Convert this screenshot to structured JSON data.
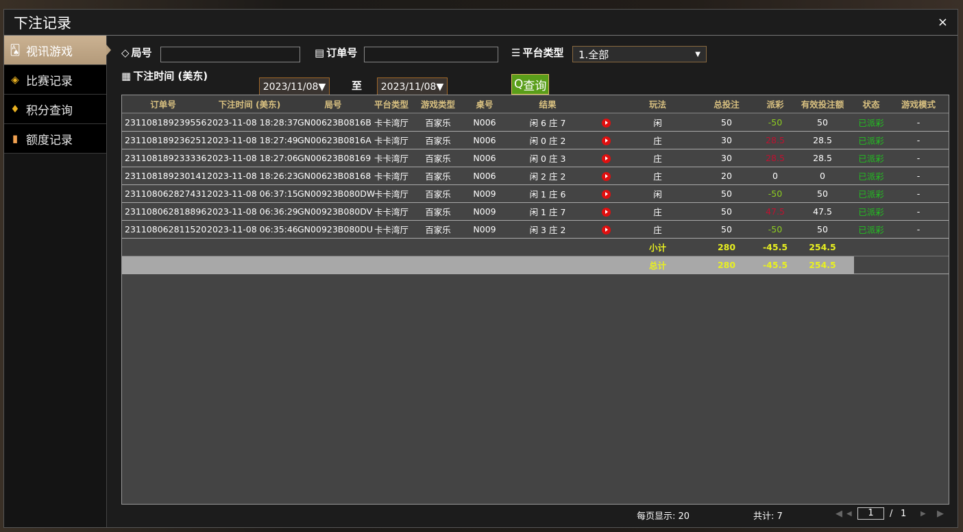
{
  "title": "下注记录",
  "close": "×",
  "sidebar": [
    {
      "label": "视讯游戏",
      "icon": "cards-icon",
      "active": true
    },
    {
      "label": "比赛记录",
      "icon": "ticket-icon"
    },
    {
      "label": "积分查询",
      "icon": "diamond-icon"
    },
    {
      "label": "额度记录",
      "icon": "document-icon"
    }
  ],
  "filters": {
    "round_label": "局号",
    "round_value": "",
    "order_label": "订单号",
    "order_value": "",
    "platform_label": "平台类型",
    "platform_value": "1.全部",
    "time_label": "下注时间 (美东)",
    "date_from": "2023/11/08▼",
    "to_label": "至",
    "date_to": "2023/11/08▼",
    "query": "查询"
  },
  "table": {
    "headers": [
      "订单号",
      "下注时间 (美东)",
      "局号",
      "平台类型",
      "游戏类型",
      "桌号",
      "结果",
      "",
      "玩法",
      "总投注",
      "派彩",
      "有效投注额",
      "状态",
      "游戏模式"
    ],
    "rows": [
      [
        "231108189239556",
        "2023-11-08 18:28:37",
        "GN00623B0816B",
        "卡卡湾厅",
        "百家乐",
        "N006",
        "闲 6 庄 7",
        "",
        "闲",
        "50",
        "-50",
        "50",
        "已派彩",
        "-"
      ],
      [
        "231108189236251",
        "2023-11-08 18:27:49",
        "GN00623B0816A",
        "卡卡湾厅",
        "百家乐",
        "N006",
        "闲 0 庄 2",
        "",
        "庄",
        "30",
        "28.5",
        "28.5",
        "已派彩",
        "-"
      ],
      [
        "231108189233336",
        "2023-11-08 18:27:06",
        "GN00623B08169",
        "卡卡湾厅",
        "百家乐",
        "N006",
        "闲 0 庄 3",
        "",
        "庄",
        "30",
        "28.5",
        "28.5",
        "已派彩",
        "-"
      ],
      [
        "231108189230141",
        "2023-11-08 18:26:23",
        "GN00623B08168",
        "卡卡湾厅",
        "百家乐",
        "N006",
        "闲 2 庄 2",
        "",
        "庄",
        "20",
        "0",
        "0",
        "已派彩",
        "-"
      ],
      [
        "231108062827431",
        "2023-11-08 06:37:15",
        "GN00923B080DW",
        "卡卡湾厅",
        "百家乐",
        "N009",
        "闲 1 庄 6",
        "",
        "闲",
        "50",
        "-50",
        "50",
        "已派彩",
        "-"
      ],
      [
        "231108062818896",
        "2023-11-08 06:36:29",
        "GN00923B080DV",
        "卡卡湾厅",
        "百家乐",
        "N009",
        "闲 1 庄 7",
        "",
        "庄",
        "50",
        "47.5",
        "47.5",
        "已派彩",
        "-"
      ],
      [
        "231108062811520",
        "2023-11-08 06:35:46",
        "GN00923B080DU",
        "卡卡湾厅",
        "百家乐",
        "N009",
        "闲 3 庄 2",
        "",
        "庄",
        "50",
        "-50",
        "50",
        "已派彩",
        "-"
      ]
    ],
    "subtotal": {
      "label": "小计",
      "total_bet": "280",
      "payout": "-45.5",
      "valid_bet": "254.5"
    },
    "total": {
      "label": "总计",
      "total_bet": "280",
      "payout": "-45.5",
      "valid_bet": "254.5"
    }
  },
  "footer": {
    "per_page": "每页显示: 20",
    "count": "共计: 7",
    "page": "1",
    "sep": "/",
    "pages": "1"
  }
}
